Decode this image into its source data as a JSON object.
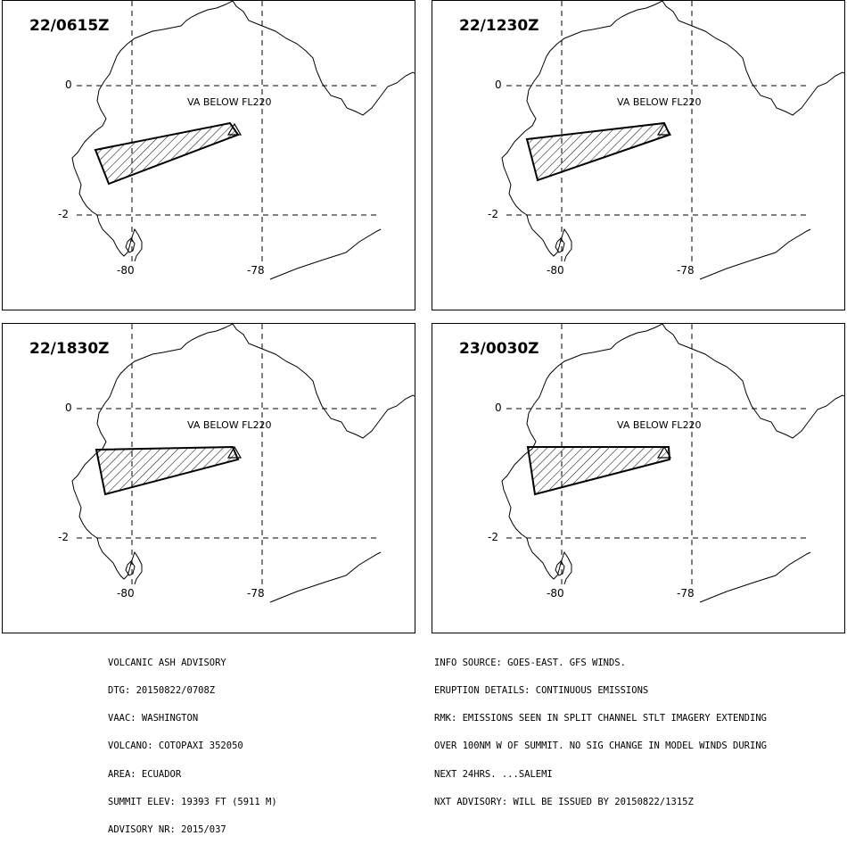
{
  "panels": [
    {
      "time": "22/0615Z",
      "label": "VA BELOW FL220",
      "ash": [
        [
          106,
          167
        ],
        [
          257,
          137
        ],
        [
          266,
          150
        ],
        [
          121,
          205
        ]
      ]
    },
    {
      "time": "22/1230Z",
      "label": "VA BELOW FL220",
      "ash": [
        [
          590,
          155
        ],
        [
          744,
          137
        ],
        [
          750,
          150
        ],
        [
          602,
          201
        ]
      ]
    },
    {
      "time": "22/1830Z",
      "label": "VA BELOW FL220",
      "ash": [
        [
          107,
          503
        ],
        [
          260,
          500
        ],
        [
          266,
          514
        ],
        [
          117,
          553
        ]
      ]
    },
    {
      "time": "23/0030Z",
      "label": "VA BELOW FL220",
      "ash": [
        [
          591,
          500
        ],
        [
          749,
          500
        ],
        [
          750,
          514
        ],
        [
          599,
          553
        ]
      ]
    }
  ],
  "map": {
    "lat_labels": [
      "0",
      "-2"
    ],
    "lon_labels": [
      "-80",
      "-78"
    ]
  },
  "advisory_left": [
    "VOLCANIC ASH ADVISORY",
    "DTG: 20150822/0708Z",
    "VAAC: WASHINGTON",
    "VOLCANO: COTOPAXI 352050",
    "AREA: ECUADOR",
    "SUMMIT ELEV: 19393 FT (5911 M)",
    "ADVISORY NR: 2015/037"
  ],
  "advisory_right": [
    "INFO SOURCE: GOES-EAST. GFS WINDS.",
    "ERUPTION DETAILS: CONTINUOUS EMISSIONS",
    "RMK: EMISSIONS SEEN IN SPLIT CHANNEL STLT IMAGERY EXTENDING",
    "OVER 100NM W OF SUMMIT. NO SIG CHANGE IN MODEL WINDS DURING",
    "NEXT 24HRS. ...SALEMI",
    "NXT ADVISORY: WILL BE ISSUED BY 20150822/1315Z"
  ]
}
